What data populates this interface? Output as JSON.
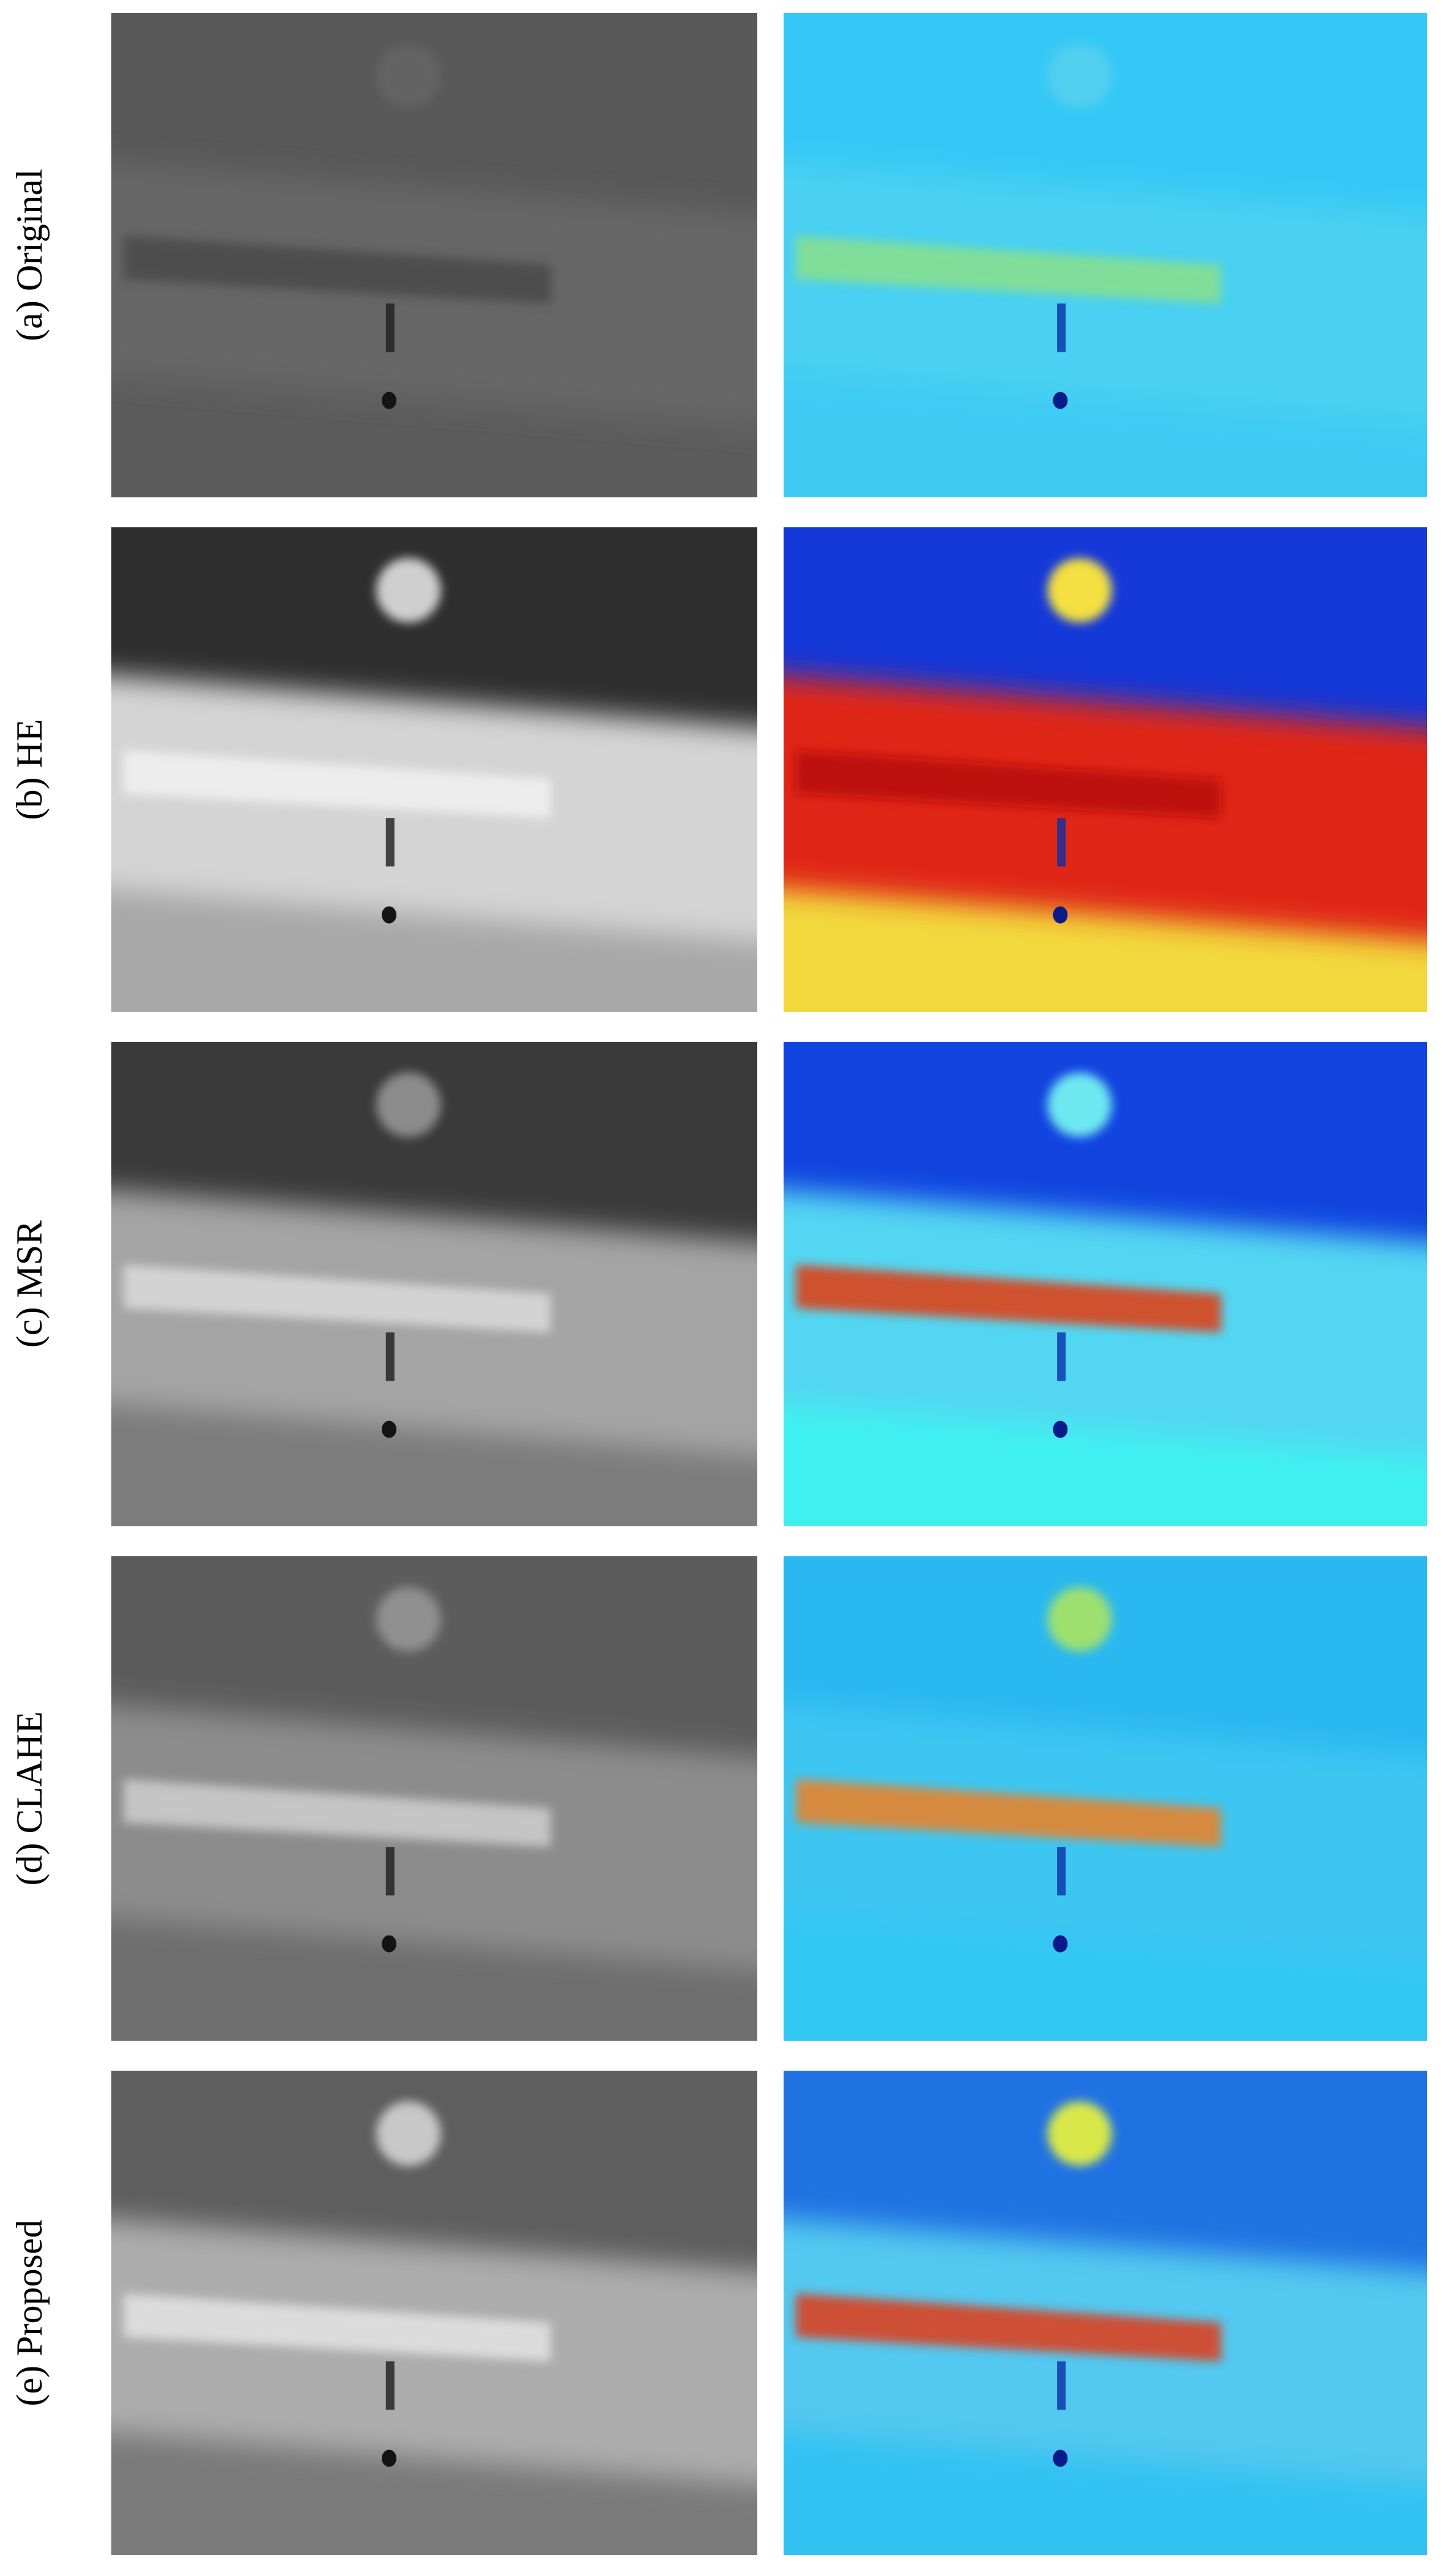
{
  "panels": [
    {
      "label": "(a) Original"
    },
    {
      "label": "(b) HE"
    },
    {
      "label": "(c) MSR"
    },
    {
      "label": "(d) CLAHE"
    },
    {
      "label": "(e) Proposed"
    }
  ]
}
